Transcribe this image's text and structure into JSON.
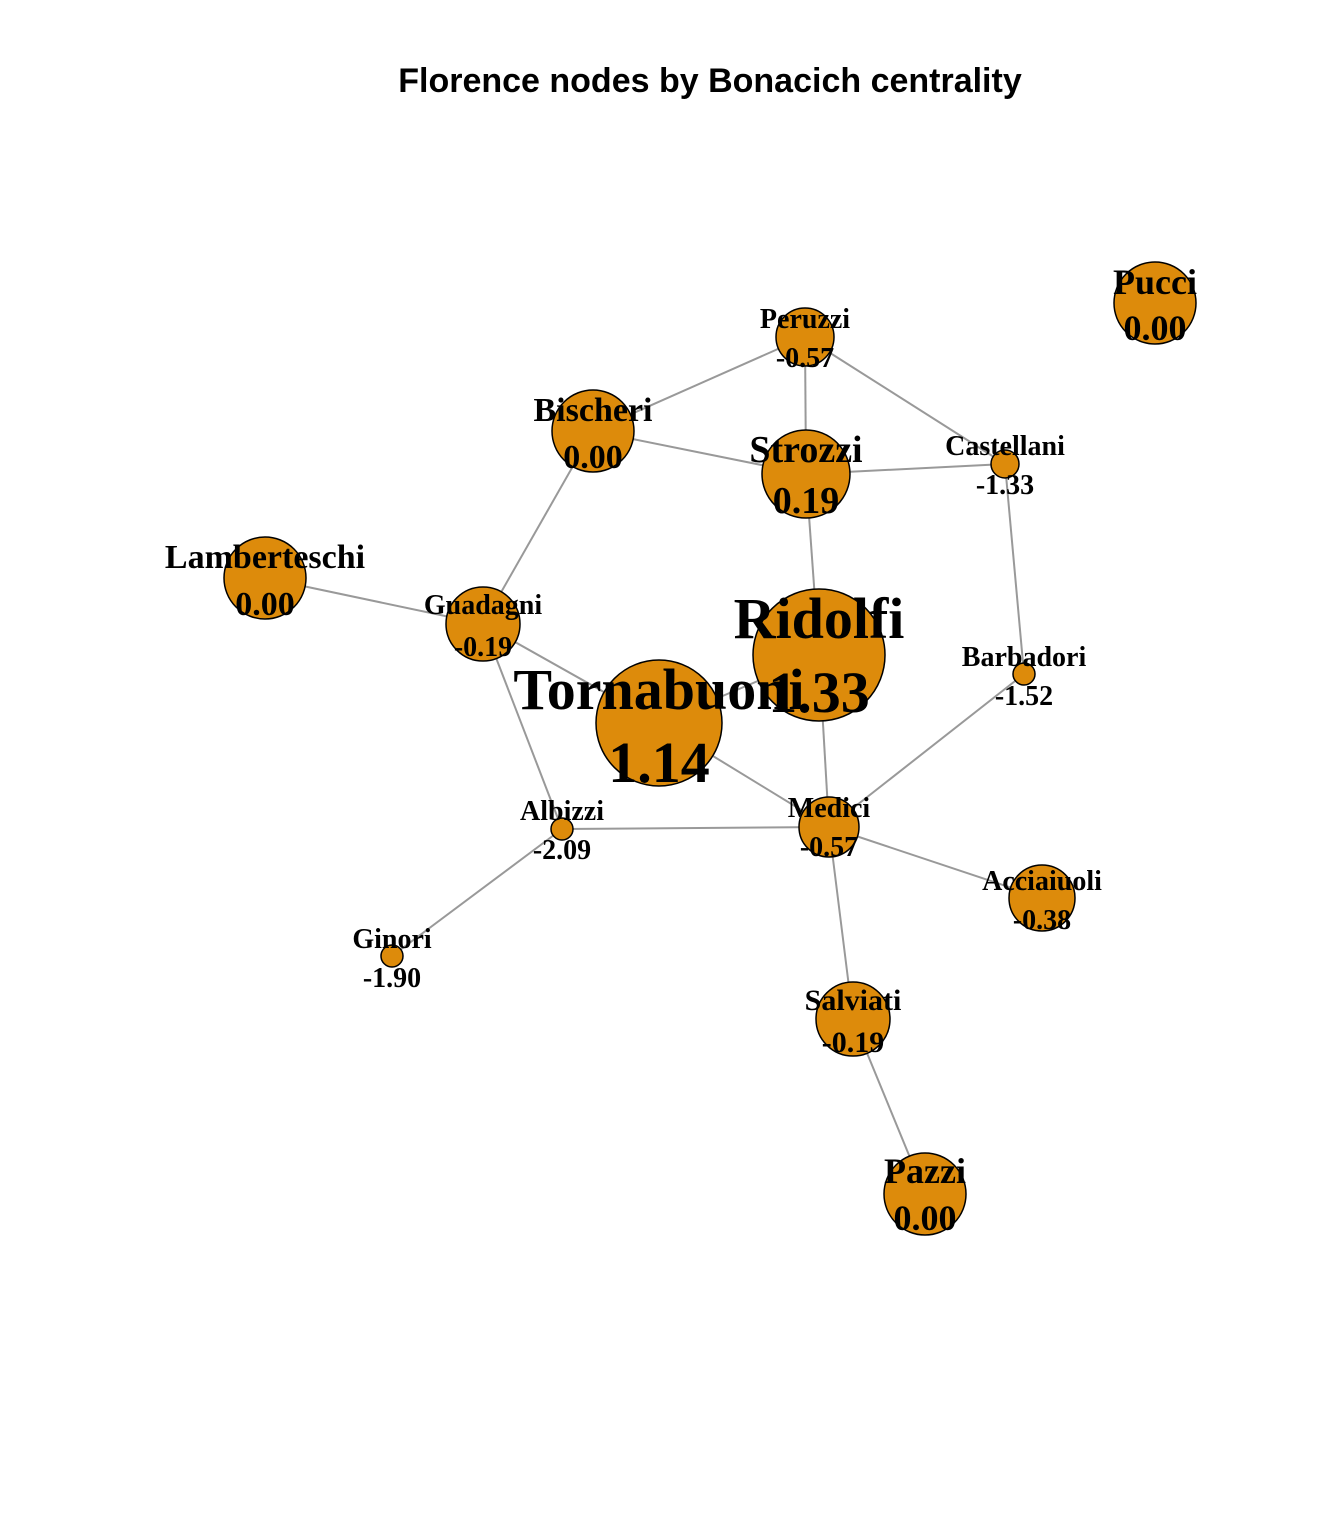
{
  "title": "Florence nodes by Bonacich centrality",
  "colors": {
    "node_fill": "#DD8B0B",
    "node_stroke": "#000000",
    "edge": "#999999",
    "text": "#000000"
  },
  "nodes": [
    {
      "id": "Peruzzi",
      "label": "Peruzzi",
      "value": "-0.57"
    },
    {
      "id": "Pucci",
      "label": "Pucci",
      "value": "0.00"
    },
    {
      "id": "Bischeri",
      "label": "Bischeri",
      "value": "0.00"
    },
    {
      "id": "Strozzi",
      "label": "Strozzi",
      "value": "0.19"
    },
    {
      "id": "Castellani",
      "label": "Castellani",
      "value": "-1.33"
    },
    {
      "id": "Lamberteschi",
      "label": "Lamberteschi",
      "value": "0.00"
    },
    {
      "id": "Guadagni",
      "label": "Guadagni",
      "value": "-0.19"
    },
    {
      "id": "Ridolfi",
      "label": "Ridolfi",
      "value": "1.33"
    },
    {
      "id": "Barbadori",
      "label": "Barbadori",
      "value": "-1.52"
    },
    {
      "id": "Tornabuoni",
      "label": "Tornabuoni",
      "value": "1.14"
    },
    {
      "id": "Albizzi",
      "label": "Albizzi",
      "value": "-2.09"
    },
    {
      "id": "Medici",
      "label": "Medici",
      "value": "-0.57"
    },
    {
      "id": "Acciaiuoli",
      "label": "Acciaiuoli",
      "value": "-0.38"
    },
    {
      "id": "Ginori",
      "label": "Ginori",
      "value": "-1.90"
    },
    {
      "id": "Salviati",
      "label": "Salviati",
      "value": "-0.19"
    },
    {
      "id": "Pazzi",
      "label": "Pazzi",
      "value": "0.00"
    }
  ],
  "edges": [
    [
      "Peruzzi",
      "Bischeri"
    ],
    [
      "Peruzzi",
      "Strozzi"
    ],
    [
      "Peruzzi",
      "Castellani"
    ],
    [
      "Bischeri",
      "Strozzi"
    ],
    [
      "Bischeri",
      "Guadagni"
    ],
    [
      "Strozzi",
      "Castellani"
    ],
    [
      "Strozzi",
      "Ridolfi"
    ],
    [
      "Castellani",
      "Barbadori"
    ],
    [
      "Lamberteschi",
      "Guadagni"
    ],
    [
      "Guadagni",
      "Tornabuoni"
    ],
    [
      "Guadagni",
      "Albizzi"
    ],
    [
      "Ridolfi",
      "Tornabuoni"
    ],
    [
      "Ridolfi",
      "Medici"
    ],
    [
      "Tornabuoni",
      "Medici"
    ],
    [
      "Barbadori",
      "Medici"
    ],
    [
      "Albizzi",
      "Medici"
    ],
    [
      "Albizzi",
      "Ginori"
    ],
    [
      "Medici",
      "Acciaiuoli"
    ],
    [
      "Medici",
      "Salviati"
    ],
    [
      "Salviati",
      "Pazzi"
    ]
  ]
}
